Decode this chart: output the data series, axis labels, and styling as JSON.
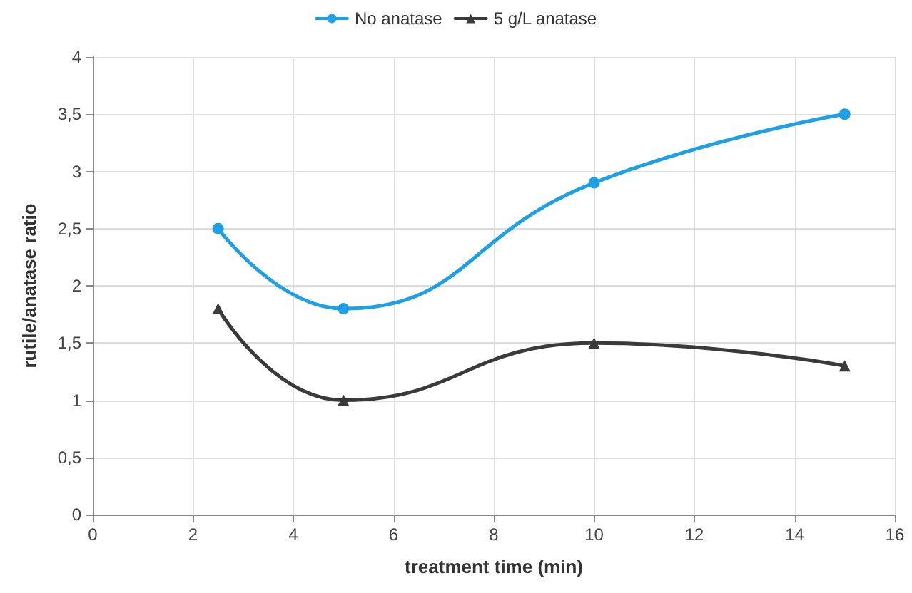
{
  "chart_data": {
    "type": "line",
    "xlabel": "treatment time (min)",
    "ylabel": "rutile/anatase ratio",
    "x": [
      2.5,
      5,
      10,
      15
    ],
    "series": [
      {
        "name": "No anatase",
        "color": "#1ea0e6",
        "marker": "circle",
        "values": [
          2.5,
          1.8,
          2.9,
          3.5
        ]
      },
      {
        "name": "5 g/L anatase",
        "color": "#3a3a3a",
        "marker": "triangle",
        "values": [
          1.8,
          1.0,
          1.5,
          1.3
        ]
      }
    ],
    "xlim": [
      0,
      16
    ],
    "xticks": [
      0,
      2,
      4,
      6,
      8,
      10,
      12,
      14,
      16
    ],
    "ylim": [
      0,
      4
    ],
    "yticks": [
      0,
      {
        "value": 0.5,
        "label": "0,5"
      },
      1,
      {
        "value": 1.5,
        "label": "1,5"
      },
      2,
      {
        "value": 2.5,
        "label": "2,5"
      },
      3,
      {
        "value": 3.5,
        "label": "3,5"
      },
      4
    ],
    "grid": true,
    "legend": "top",
    "line_style": "solid"
  }
}
